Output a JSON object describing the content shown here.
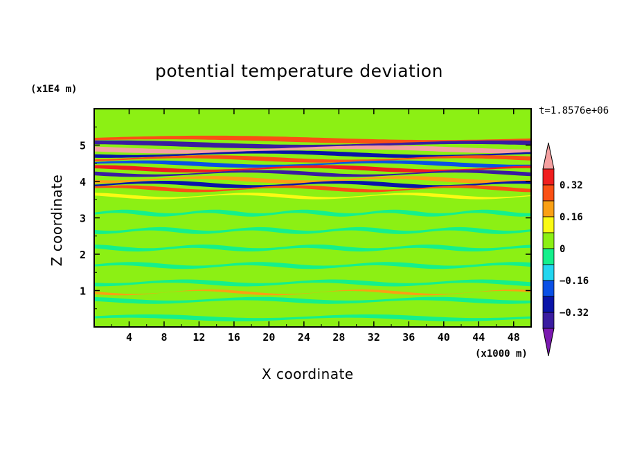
{
  "chart_data": {
    "type": "heatmap",
    "title": "potential temperature deviation",
    "xlabel": "X coordinate",
    "ylabel": "Z coordinate",
    "x_unit_label": "(x1000 m)",
    "y_unit_label": "(x1E4 m)",
    "time_label": "t=1.8576e+06",
    "xlim": [
      0,
      50
    ],
    "ylim": [
      0,
      6
    ],
    "x_ticks": [
      4,
      8,
      12,
      16,
      20,
      24,
      28,
      32,
      36,
      40,
      44,
      48
    ],
    "y_ticks": [
      1,
      2,
      3,
      4,
      5
    ],
    "colorbar": {
      "levels": [
        -0.48,
        -0.4,
        -0.32,
        -0.24,
        -0.16,
        -0.08,
        0,
        0.08,
        0.16,
        0.24,
        0.32,
        0.4,
        0.48
      ],
      "labeled_ticks": [
        {
          "value": 0.32,
          "label": "0.32"
        },
        {
          "value": 0.16,
          "label": "0.16"
        },
        {
          "value": 0,
          "label": "0"
        },
        {
          "value": -0.16,
          "label": "−0.16"
        },
        {
          "value": -0.32,
          "label": "−0.32"
        }
      ],
      "colors": [
        "#7b19b0",
        "#3a1ca0",
        "#0a14a8",
        "#0a50e6",
        "#22d6f0",
        "#14f08c",
        "#8cf014",
        "#fafa14",
        "#faa014",
        "#fa5014",
        "#f01e1e",
        "#f5a0a0"
      ],
      "extends": "both"
    },
    "bands": [
      {
        "z_center": 5.15,
        "thickness": 0.1,
        "value": 0.3
      },
      {
        "z_center": 5.02,
        "thickness": 0.1,
        "value": -0.4
      },
      {
        "z_center": 4.88,
        "thickness": 0.1,
        "value": 0.42
      },
      {
        "z_center": 4.75,
        "thickness": 0.08,
        "value": -0.3
      },
      {
        "z_center": 4.62,
        "thickness": 0.08,
        "value": 0.24
      },
      {
        "z_center": 4.48,
        "thickness": 0.08,
        "value": -0.2
      },
      {
        "z_center": 4.35,
        "thickness": 0.08,
        "value": 0.33
      },
      {
        "z_center": 4.22,
        "thickness": 0.07,
        "value": -0.38
      },
      {
        "z_center": 4.05,
        "thickness": 0.08,
        "value": 0.2
      },
      {
        "z_center": 3.92,
        "thickness": 0.08,
        "value": -0.28
      },
      {
        "z_center": 3.8,
        "thickness": 0.07,
        "value": 0.3
      },
      {
        "z_center": 3.6,
        "thickness": 0.06,
        "value": 0.12
      },
      {
        "z_center": 0.95,
        "thickness": 0.04,
        "value": 0.22
      }
    ]
  }
}
